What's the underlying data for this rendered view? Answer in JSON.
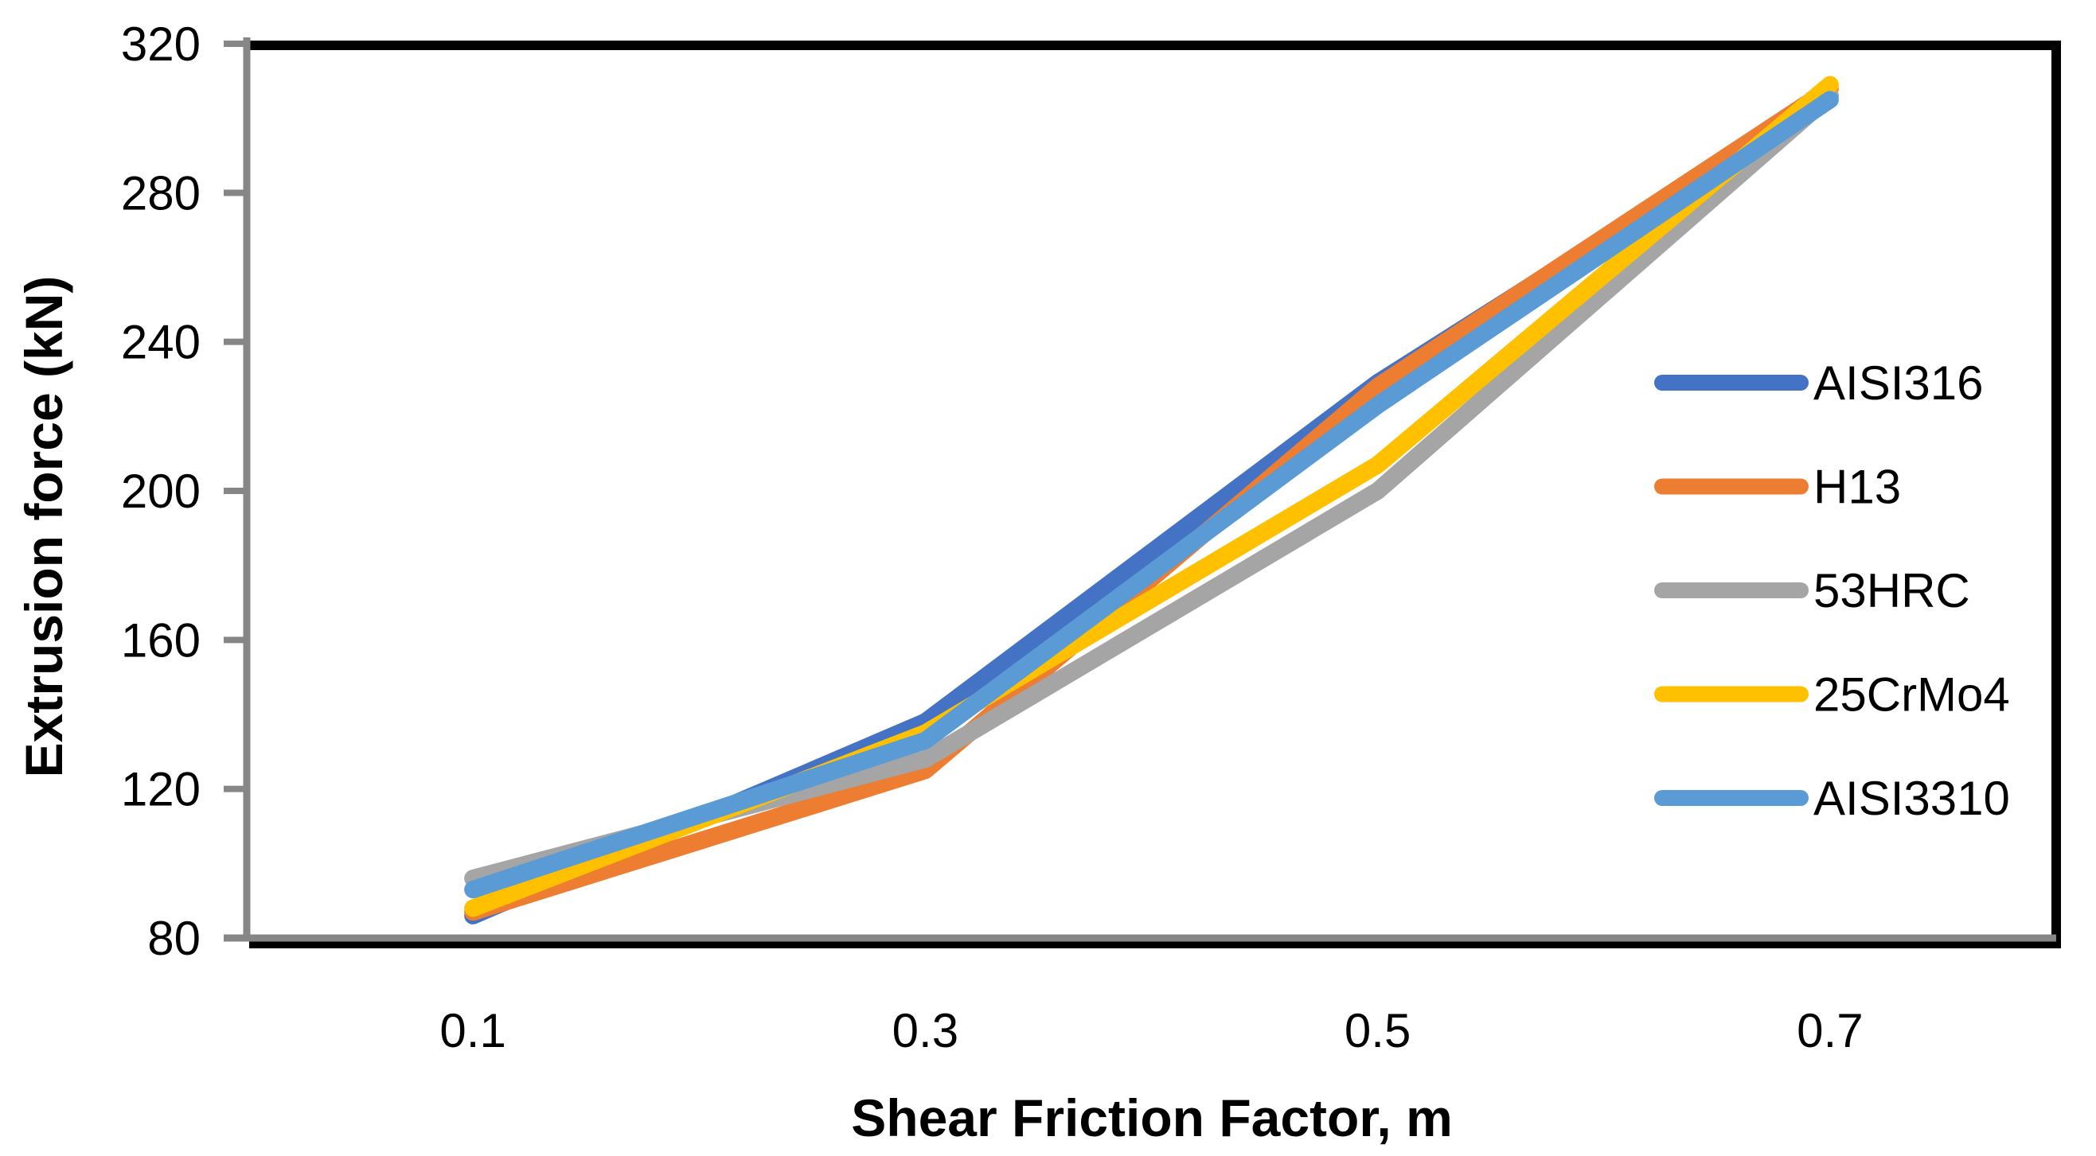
{
  "chart_data": {
    "type": "line",
    "title": "",
    "xlabel": "Shear Friction Factor, m",
    "ylabel": "Extrusion force (kN)",
    "categories": [
      "0.1",
      "0.3",
      "0.5",
      "0.7"
    ],
    "series": [
      {
        "name": "AISI316",
        "color": "#4472C4",
        "values": [
          86,
          138,
          229,
          306
        ]
      },
      {
        "name": "H13",
        "color": "#ED7D31",
        "values": [
          87,
          125,
          228,
          308
        ]
      },
      {
        "name": "53HRC",
        "color": "#A5A5A5",
        "values": [
          96,
          128,
          200,
          306
        ]
      },
      {
        "name": "25CrMo4",
        "color": "#FFC000",
        "values": [
          88,
          135,
          207,
          309
        ]
      },
      {
        "name": "AISI3310",
        "color": "#5B9BD5",
        "values": [
          93,
          133,
          223,
          305
        ]
      }
    ],
    "ylim": [
      80,
      320
    ],
    "yticks": [
      80,
      120,
      160,
      200,
      240,
      280,
      320
    ],
    "grid": "off",
    "legend_position": "right-middle",
    "axis_color": "#868686",
    "border_color": "#000000",
    "text_color": "#000000",
    "background_color": "#FFFFFF"
  }
}
